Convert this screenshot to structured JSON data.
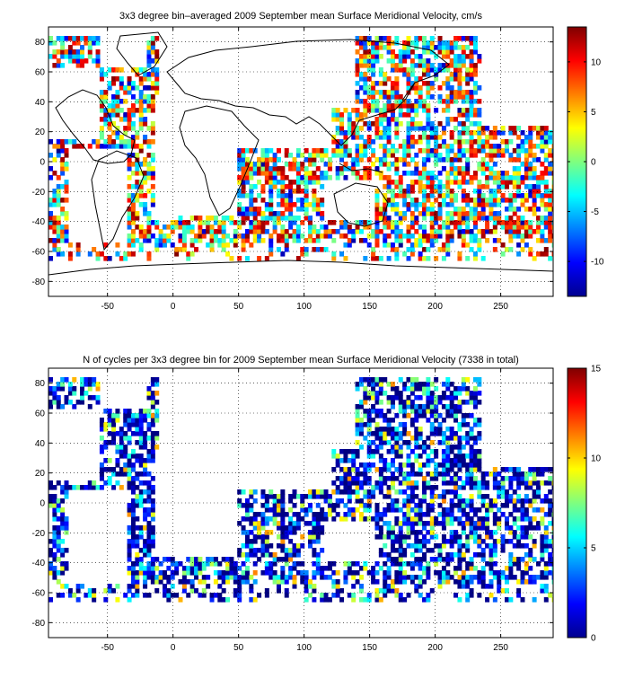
{
  "figure": {
    "background": "#ffffff"
  },
  "chart_data": [
    {
      "type": "heatmap",
      "title": "3x3 degree bin–averaged 2009 September mean Surface Meridional Velocity, cm/s",
      "xlabel": "",
      "ylabel": "",
      "xlim": [
        -95,
        290
      ],
      "ylim": [
        -90,
        90
      ],
      "xticks": [
        -50,
        0,
        50,
        100,
        150,
        200,
        250
      ],
      "yticks": [
        -80,
        -60,
        -40,
        -20,
        0,
        20,
        40,
        60,
        80
      ],
      "grid": true,
      "grid_style": "dotted",
      "bin_size_deg": 3,
      "colormap": "jet",
      "colorbar": {
        "range": [
          -13.5,
          13.5
        ],
        "ticks": [
          -10,
          -5,
          0,
          5,
          10
        ],
        "tick_labels": [
          "-10",
          "-5",
          "0",
          "5",
          "10"
        ]
      }
    },
    {
      "type": "heatmap",
      "title": "N of cycles per 3x3 degree bin for 2009 September mean Surface Meridional Velocity (7338 in total)",
      "xlabel": "",
      "ylabel": "",
      "xlim": [
        -95,
        290
      ],
      "ylim": [
        -90,
        90
      ],
      "xticks": [
        -50,
        0,
        50,
        100,
        150,
        200,
        250
      ],
      "yticks": [
        -80,
        -60,
        -40,
        -20,
        0,
        20,
        40,
        60,
        80
      ],
      "grid": true,
      "grid_style": "dotted",
      "bin_size_deg": 3,
      "total_cycles": 7338,
      "colormap": "jet",
      "colorbar": {
        "range": [
          0,
          15
        ],
        "ticks": [
          0,
          5,
          10,
          15
        ],
        "tick_labels": [
          "0",
          "5",
          "10",
          "15"
        ]
      }
    }
  ]
}
